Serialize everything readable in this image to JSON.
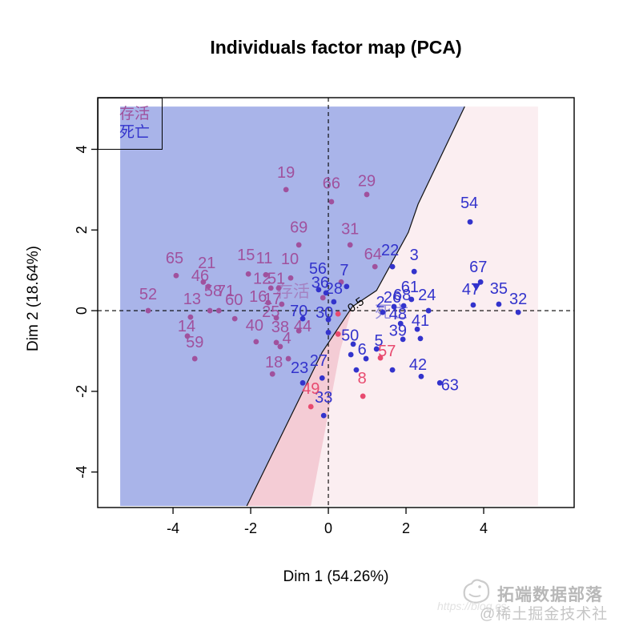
{
  "title": "Individuals factor map (PCA)",
  "axes": {
    "xlabel": "Dim 1 (54.26%)",
    "ylabel": "Dim 2 (18.64%)",
    "x_ticks": [
      -4,
      -2,
      0,
      2,
      4
    ],
    "y_ticks": [
      -4,
      -2,
      0,
      2,
      4
    ],
    "xlim": [
      -5.94,
      6.33
    ],
    "ylim": [
      -4.88,
      5.28
    ]
  },
  "legend": {
    "items": [
      {
        "label": "存活",
        "color": "#a0519d"
      },
      {
        "label": "死亡",
        "color": "#3333cc"
      }
    ]
  },
  "colors": {
    "survive": "#a0519d",
    "dead": "#3333cc",
    "red": "#e84a6f"
  },
  "chart_data": {
    "type": "scatter",
    "title": "Individuals factor map (PCA)",
    "xlabel": "Dim 1 (54.26%)",
    "ylabel": "Dim 2 (18.64%)",
    "grid": false,
    "legend_position": "top-left",
    "regions": [
      {
        "name": "class-dead-blue",
        "color": "#a9b4e9",
        "polygon": [
          [
            -5.36,
            5.06
          ],
          [
            3.51,
            5.06
          ],
          [
            2.31,
            2.64
          ],
          [
            2.06,
            1.94
          ],
          [
            1.24,
            0.5
          ],
          [
            0.62,
            0.1
          ],
          [
            -0.16,
            -1.03
          ],
          [
            -2.1,
            -4.84
          ],
          [
            -5.36,
            -4.84
          ]
        ]
      },
      {
        "name": "class-survive-pink",
        "color": "#fbeef1",
        "polygon": [
          [
            3.51,
            5.06
          ],
          [
            5.4,
            5.06
          ],
          [
            5.4,
            -4.84
          ],
          [
            -2.1,
            -4.84
          ],
          [
            -0.16,
            -1.03
          ],
          [
            0.62,
            0.1
          ],
          [
            1.24,
            0.5
          ],
          [
            2.06,
            1.94
          ],
          [
            2.31,
            2.64
          ]
        ]
      },
      {
        "name": "uncertain-band-dark-pink",
        "color": "#f4ccd5",
        "polygon": [
          [
            0.62,
            0.1
          ],
          [
            -0.16,
            -1.03
          ],
          [
            -2.1,
            -4.84
          ],
          [
            -0.45,
            -4.84
          ],
          [
            0.3,
            -1.0
          ]
        ]
      }
    ],
    "boundary": [
      [
        3.51,
        5.06
      ],
      [
        2.31,
        2.64
      ],
      [
        2.06,
        1.94
      ],
      [
        1.24,
        0.5
      ],
      [
        0.62,
        0.1
      ],
      [
        -0.16,
        -1.03
      ],
      [
        -2.1,
        -4.84
      ]
    ],
    "series": [
      {
        "name": "存活",
        "color": "#a0519d",
        "points": [
          [
            "19",
            -1.09,
            3.0,
            -1.09,
            3.43
          ],
          [
            "66",
            0.08,
            2.7,
            0.08,
            3.17
          ],
          [
            "29",
            0.99,
            2.88,
            0.99,
            3.23
          ],
          [
            "69",
            -0.76,
            1.63,
            -0.76,
            2.08
          ],
          [
            "31",
            0.56,
            1.63,
            0.56,
            2.04
          ],
          [
            "64",
            1.2,
            1.09,
            1.15,
            1.41
          ],
          [
            "15",
            -2.06,
            0.91,
            -2.12,
            1.39
          ],
          [
            "11",
            -1.61,
            0.89,
            -1.65,
            1.31
          ],
          [
            "10",
            -0.97,
            0.81,
            -0.99,
            1.29
          ],
          [
            "65",
            -3.92,
            0.87,
            -3.96,
            1.31
          ],
          [
            "21",
            -3.22,
            0.71,
            -3.13,
            1.19
          ],
          [
            "46",
            -3.09,
            0.6,
            -3.3,
            0.87
          ],
          [
            "52",
            -4.64,
            0.0,
            -4.64,
            0.42
          ],
          [
            "13",
            -3.55,
            -0.16,
            -3.51,
            0.3
          ],
          [
            "58",
            -3.05,
            0.0,
            -2.97,
            0.5
          ],
          [
            "71",
            -2.82,
            0.0,
            -2.64,
            0.5
          ],
          [
            "60",
            -2.41,
            -0.2,
            -2.43,
            0.28
          ],
          [
            "12",
            -1.48,
            0.56,
            -1.71,
            0.81
          ],
          [
            "51",
            -1.28,
            0.56,
            -1.34,
            0.81
          ],
          [
            "16",
            -1.55,
            0.2,
            -1.81,
            0.36
          ],
          [
            "17",
            -1.2,
            0.16,
            -1.44,
            0.3
          ],
          [
            "25",
            -1.34,
            -0.18,
            -1.48,
            -0.02
          ],
          [
            "14",
            -3.63,
            -0.63,
            -3.65,
            -0.38
          ],
          [
            "59",
            -3.44,
            -1.19,
            -3.44,
            -0.77
          ],
          [
            "40",
            -1.86,
            -0.77,
            -1.9,
            -0.36
          ],
          [
            "38",
            -1.34,
            -0.79,
            -1.24,
            -0.4
          ],
          [
            "4",
            -1.24,
            -0.89,
            -1.07,
            -0.67
          ],
          [
            "44",
            -0.76,
            -0.5,
            -0.66,
            -0.38
          ],
          [
            "18",
            -1.03,
            -1.19,
            -1.4,
            -1.27
          ]
        ]
      },
      {
        "name": "死亡",
        "color": "#3333cc",
        "points": [
          [
            "54",
            3.65,
            2.2,
            3.63,
            2.68
          ],
          [
            "67",
            3.92,
            0.71,
            3.86,
            1.09
          ],
          [
            "47",
            3.73,
            0.14,
            3.67,
            0.54
          ],
          [
            "35",
            4.39,
            0.16,
            4.39,
            0.56
          ],
          [
            "32",
            4.89,
            -0.04,
            4.89,
            0.3
          ],
          [
            "22",
            1.65,
            1.09,
            1.59,
            1.51
          ],
          [
            "3",
            2.21,
            0.97,
            2.21,
            1.39
          ],
          [
            "56",
            -0.25,
            0.52,
            -0.27,
            1.05
          ],
          [
            "7",
            0.47,
            0.6,
            0.41,
            1.01
          ],
          [
            "36",
            -0.06,
            0.44,
            -0.21,
            0.71
          ],
          [
            "28",
            0.14,
            0.22,
            0.14,
            0.56
          ],
          [
            "70",
            -0.66,
            -0.2,
            -0.76,
            0.0
          ],
          [
            "30",
            0.0,
            -0.22,
            -0.1,
            -0.04
          ],
          [
            "61",
            2.14,
            0.28,
            2.1,
            0.6
          ],
          [
            "68",
            1.94,
            0.12,
            1.9,
            0.4
          ],
          [
            "26",
            1.69,
            0.1,
            1.65,
            0.34
          ],
          [
            "24",
            2.58,
            0.0,
            2.54,
            0.4
          ],
          [
            "2",
            1.4,
            -0.04,
            1.34,
            0.22
          ],
          [
            "48",
            1.86,
            -0.32,
            1.79,
            -0.08
          ],
          [
            "41",
            2.29,
            -0.46,
            2.37,
            -0.24
          ],
          [
            "39",
            1.92,
            -0.71,
            1.79,
            -0.48
          ],
          [
            "5",
            1.24,
            -0.95,
            1.3,
            -0.73
          ],
          [
            "50",
            0.64,
            -0.83,
            0.56,
            -0.6
          ],
          [
            "42",
            2.39,
            -1.63,
            2.31,
            -1.33
          ],
          [
            "63",
            2.87,
            -1.79,
            3.13,
            -1.83
          ],
          [
            "23",
            -0.66,
            -1.79,
            -0.74,
            -1.41
          ],
          [
            "27",
            -0.16,
            -1.67,
            -0.25,
            -1.23
          ],
          [
            "33",
            -0.12,
            -2.6,
            -0.12,
            -2.14
          ],
          [
            "6",
            0.97,
            -1.19,
            0.87,
            -0.95
          ]
        ]
      },
      {
        "name": "misclassified",
        "color": "#e84a6f",
        "points": [
          [
            "49",
            -0.45,
            -2.38,
            -0.45,
            -1.92
          ],
          [
            "8",
            0.89,
            -2.12,
            0.87,
            -1.67
          ],
          [
            "57",
            1.34,
            -1.17,
            1.51,
            -0.99
          ]
        ]
      }
    ],
    "extra_dots": [
      [
        "survive",
        -0.14,
        0.32
      ],
      [
        "survive",
        -1.44,
        -1.57
      ],
      [
        "survive",
        0.33,
        0.71
      ],
      [
        "dead",
        0.0,
        -0.54
      ],
      [
        "dead",
        0.72,
        -1.47
      ],
      [
        "dead",
        0.58,
        -1.09
      ],
      [
        "dead",
        1.65,
        -1.47
      ],
      [
        "dead",
        2.37,
        -0.69
      ],
      [
        "red",
        0.25,
        -0.08
      ],
      [
        "red",
        0.25,
        -0.58
      ]
    ],
    "triangle_marker": {
      "x": 3.81,
      "y": 0.6,
      "color": "#3333cc"
    },
    "annotations": [
      {
        "text": "存活",
        "x": -0.91,
        "y": 0.48,
        "color": "#a0519d",
        "opacity": 0.5,
        "size": 21,
        "rotate": 0
      },
      {
        "text": "死亡",
        "x": 1.63,
        "y": -0.04,
        "color": "#3333cc",
        "opacity": 0.5,
        "size": 21,
        "rotate": 0
      },
      {
        "text": "0.5",
        "x": 0.68,
        "y": 0.18,
        "color": "#000000",
        "opacity": 1,
        "size": 15,
        "rotate": -35
      }
    ]
  },
  "watermark": {
    "brand": "拓端数据部落",
    "handle": "@稀土掘金技术社区",
    "url_fragment": "https://blog.cs"
  }
}
